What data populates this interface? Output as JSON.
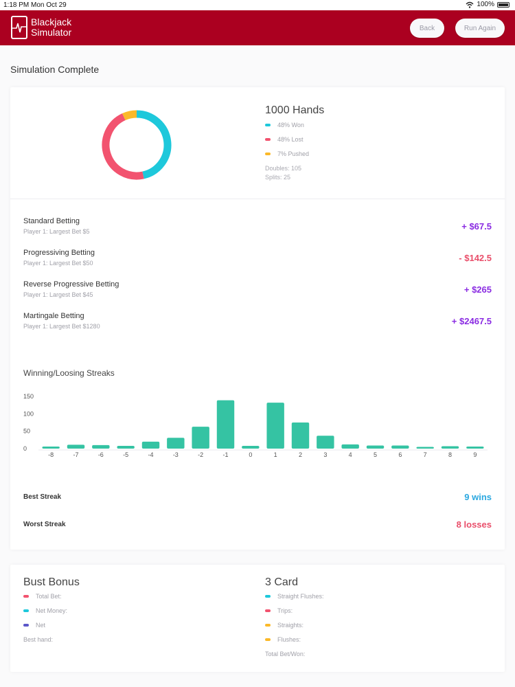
{
  "status_bar": {
    "time": "1:18 PM",
    "date": "Mon Oct 29",
    "battery": "100%"
  },
  "header": {
    "logo_line1": "Blackjack",
    "logo_line2": "Simulator",
    "back_label": "Back",
    "run_again_label": "Run Again",
    "brand_color": "#ab0020"
  },
  "page": {
    "title": "Simulation Complete"
  },
  "summary": {
    "hands_title": "1000 Hands",
    "legend": [
      {
        "label": "48% Won",
        "color": "#1ec8db"
      },
      {
        "label": "48% Lost",
        "color": "#f2536f"
      },
      {
        "label": "7% Pushed",
        "color": "#fbb929"
      }
    ],
    "doubles": "Doubles: 105",
    "splits": "Splits: 25"
  },
  "donut_data": {
    "type": "pie",
    "slices": [
      {
        "label": "Won",
        "value": 48,
        "color": "#1ec8db"
      },
      {
        "label": "Lost",
        "value": 48,
        "color": "#f2536f"
      },
      {
        "label": "Pushed",
        "value": 7,
        "color": "#fbb929"
      }
    ]
  },
  "betting": [
    {
      "name": "Standard Betting",
      "sub": "Player 1: Largest Bet $5",
      "amount": "+ $67.5",
      "color": "#8a2be2"
    },
    {
      "name": "Progressiving Betting",
      "sub": "Player 1: Largest Bet $50",
      "amount": "- $142.5",
      "color": "#e94e6a"
    },
    {
      "name": "Reverse Progressive Betting",
      "sub": "Player 1: Largest Bet $45",
      "amount": "+ $265",
      "color": "#8a2be2"
    },
    {
      "name": "Martingale Betting",
      "sub": "Player 1: Largest Bet $1280",
      "amount": "+ $2467.5",
      "color": "#8a2be2"
    }
  ],
  "streaks": {
    "title": "Winning/Loosing Streaks",
    "best_label": "Best Streak",
    "best_value": "9 wins",
    "best_color": "#2ba8e0",
    "worst_label": "Worst Streak",
    "worst_value": "8 losses",
    "worst_color": "#e94e6a"
  },
  "chart_data": {
    "type": "bar",
    "categories": [
      "-8",
      "-7",
      "-6",
      "-5",
      "-4",
      "-3",
      "-2",
      "-1",
      "0",
      "1",
      "2",
      "3",
      "4",
      "5",
      "6",
      "7",
      "8",
      "9"
    ],
    "values": [
      6,
      11,
      10,
      8,
      20,
      31,
      63,
      139,
      8,
      132,
      75,
      37,
      12,
      9,
      9,
      5,
      7,
      6
    ],
    "ylim": [
      0,
      150
    ],
    "yticks": [
      0,
      50,
      100,
      150
    ],
    "bar_color": "#35c3a3",
    "grid": false
  },
  "bust_bonus": {
    "title": "Bust Bonus",
    "rows": [
      {
        "label": "Total Bet:",
        "color": "#f2536f"
      },
      {
        "label": "Net Money:",
        "color": "#1ec8db"
      },
      {
        "label": "Net",
        "color": "#5b57c9"
      }
    ],
    "best_hand": "Best hand:"
  },
  "three_card": {
    "title": "3 Card",
    "rows": [
      {
        "label": "Straight Flushes:",
        "color": "#1ec8db"
      },
      {
        "label": "Trips:",
        "color": "#f2536f"
      },
      {
        "label": "Straights:",
        "color": "#fbb929"
      },
      {
        "label": "Flushes:",
        "color": "#fbb929"
      }
    ],
    "total": "Total Bet/Won:"
  }
}
